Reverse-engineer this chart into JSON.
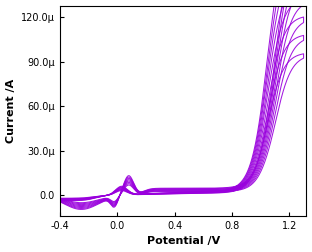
{
  "title": "",
  "xlabel": "Potential /V",
  "ylabel": "Current /A",
  "xlim": [
    -0.4,
    1.32
  ],
  "ylim": [
    -0.000128,
    1.4e-05
  ],
  "color": "#9900DD",
  "n_scans": 8,
  "background": "#ffffff",
  "x_ticks": [
    -0.4,
    0.0,
    0.4,
    0.8,
    1.2
  ],
  "x_tick_labels": [
    "-0.4",
    "0.0",
    "0.4",
    "0.8",
    "1.2"
  ],
  "y_ticks": [
    0.0,
    -3e-05,
    -6e-05,
    -9e-05,
    -0.00012
  ],
  "y_tick_labels": [
    "0.0",
    "30.0μ",
    "60.0μ",
    "90.0μ",
    "120.0μ"
  ],
  "tick_fontsize": 7,
  "label_fontsize": 8
}
